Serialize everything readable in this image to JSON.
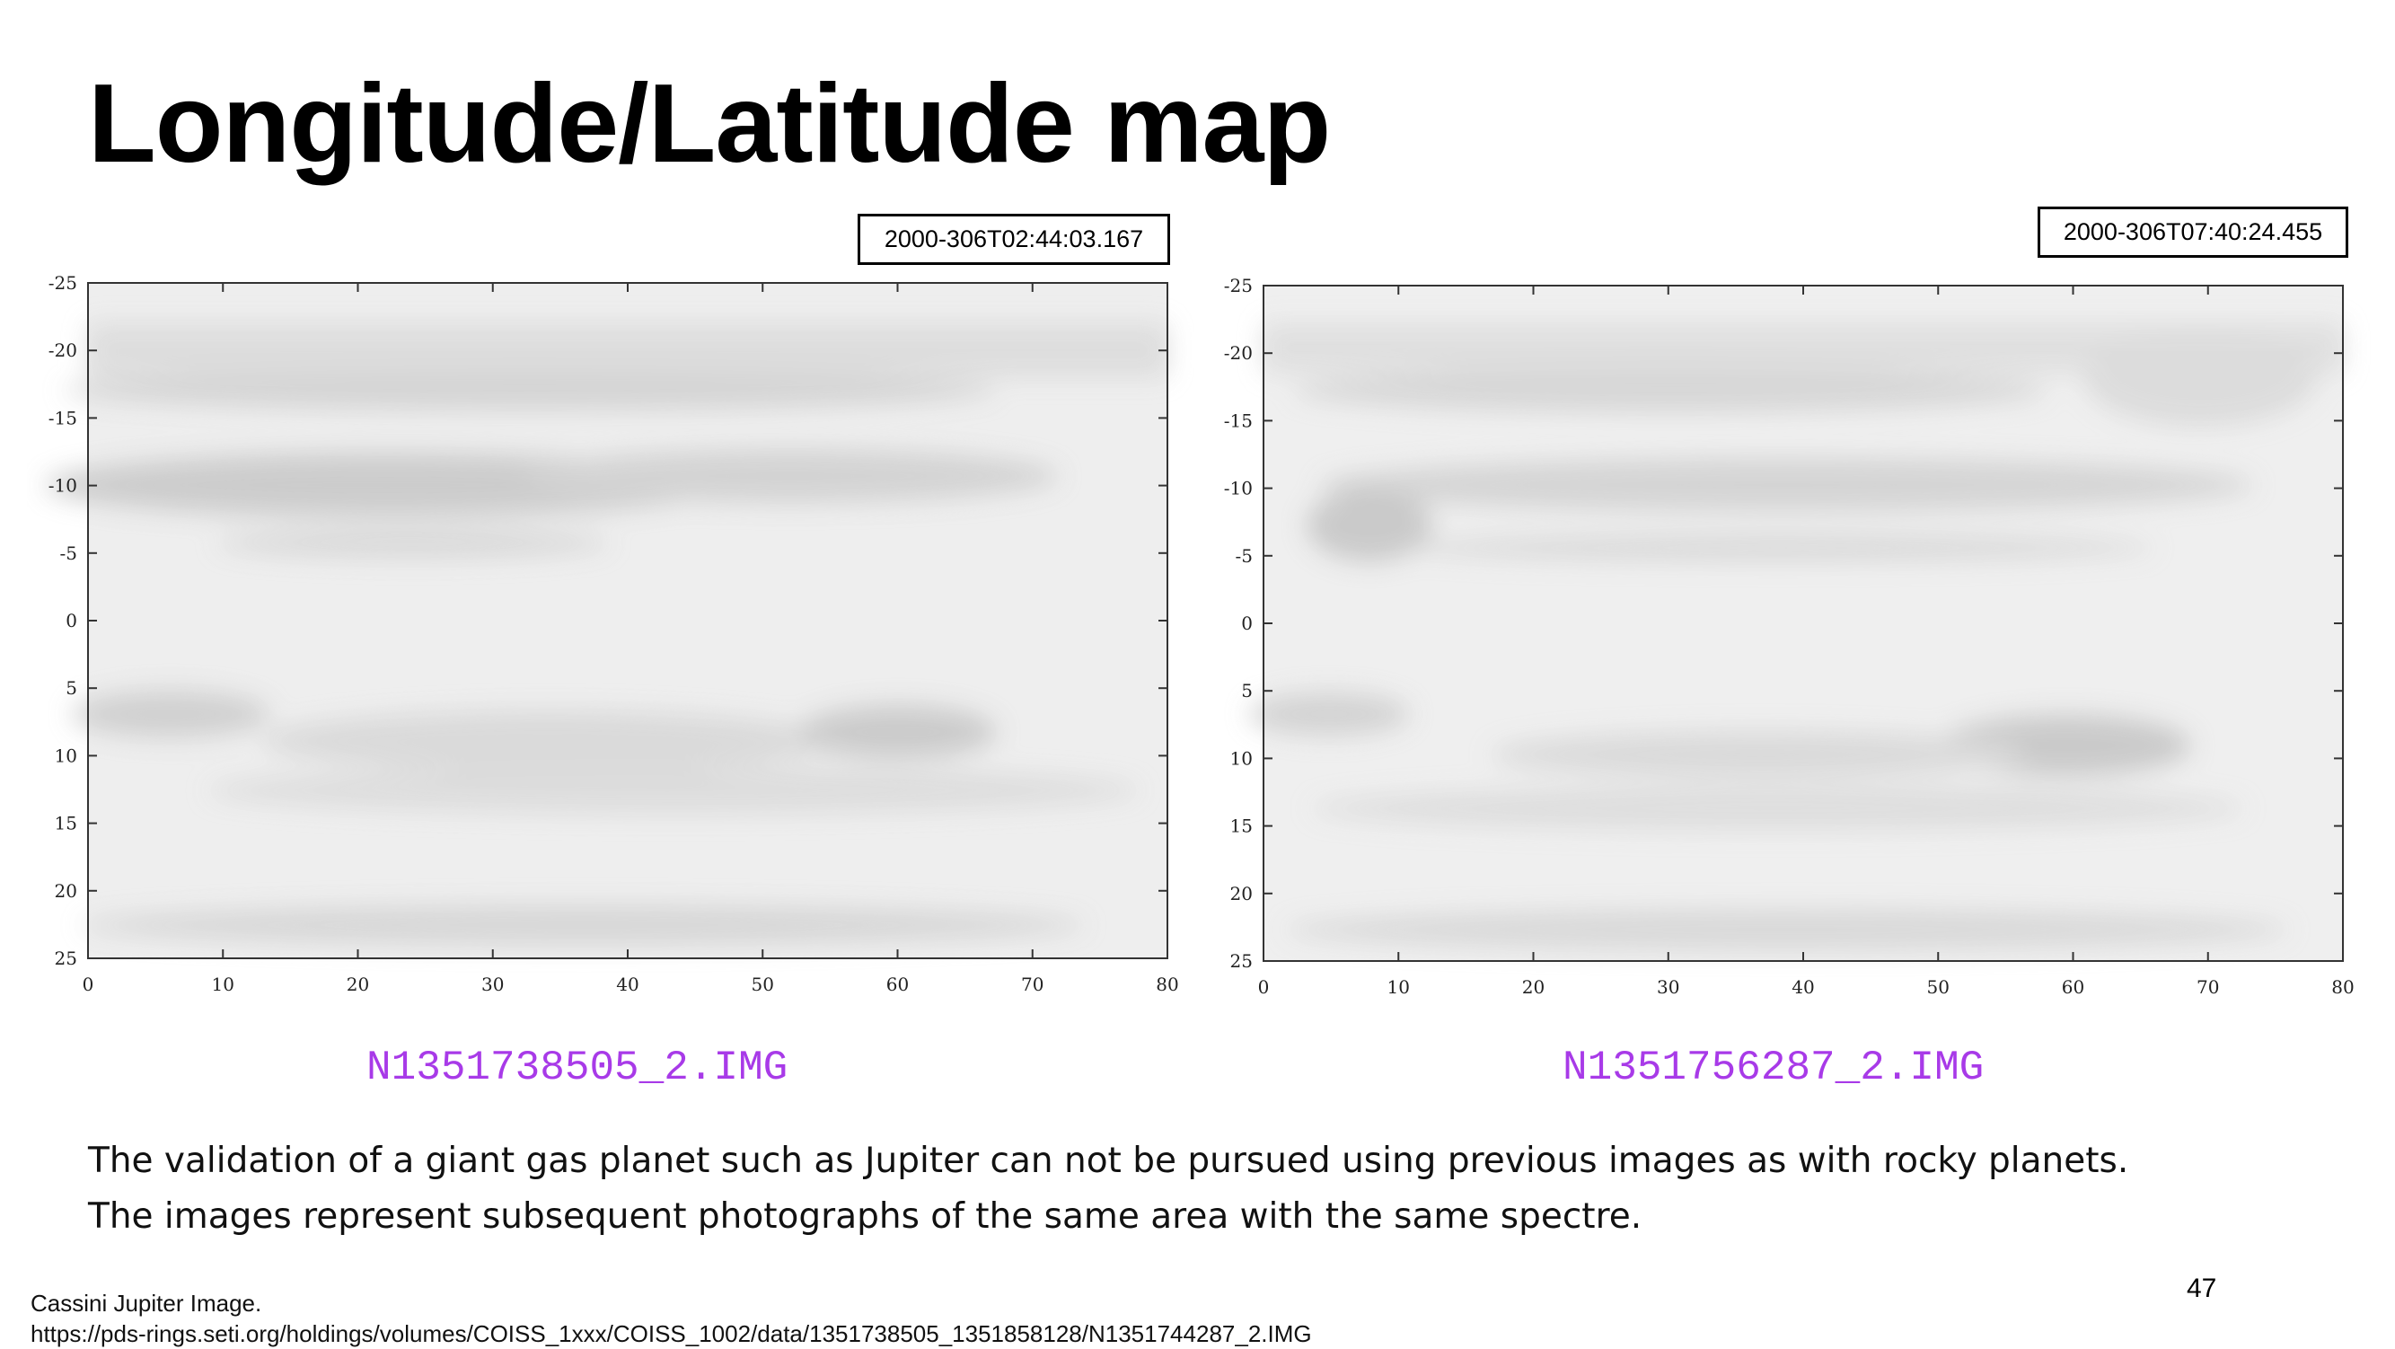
{
  "slide": {
    "title": "Longitude/Latitude map",
    "page_number": "47"
  },
  "maps": [
    {
      "timestamp": "2000-306T02:44:03.167",
      "file_name": "N1351738505_2.IMG",
      "x_ticks": [
        "0",
        "10",
        "20",
        "30",
        "40",
        "50",
        "60",
        "70",
        "80"
      ],
      "y_ticks": [
        "-25",
        "-20",
        "-15",
        "-10",
        "-5",
        "0",
        "5",
        "10",
        "15",
        "20",
        "25"
      ]
    },
    {
      "timestamp": "2000-306T07:40:24.455",
      "file_name": "N1351756287_2.IMG",
      "x_ticks": [
        "0",
        "10",
        "20",
        "30",
        "40",
        "50",
        "60",
        "70",
        "80"
      ],
      "y_ticks": [
        "-25",
        "-20",
        "-15",
        "-10",
        "-5",
        "0",
        "5",
        "10",
        "15",
        "20",
        "25"
      ]
    }
  ],
  "body": {
    "line1": "The validation of a giant gas planet such as Jupiter can not be pursued using previous images as with rocky planets.",
    "line2": "The images represent subsequent photographs of the same area with the same spectre."
  },
  "source": {
    "label": "Cassini Jupiter Image.",
    "url": "https://pds-rings.seti.org/holdings/volumes/COISS_1xxx/COISS_1002/data/1351738505_1351858128/N1351744287_2.IMG"
  },
  "colors": {
    "file_name": "#a83ae8"
  }
}
